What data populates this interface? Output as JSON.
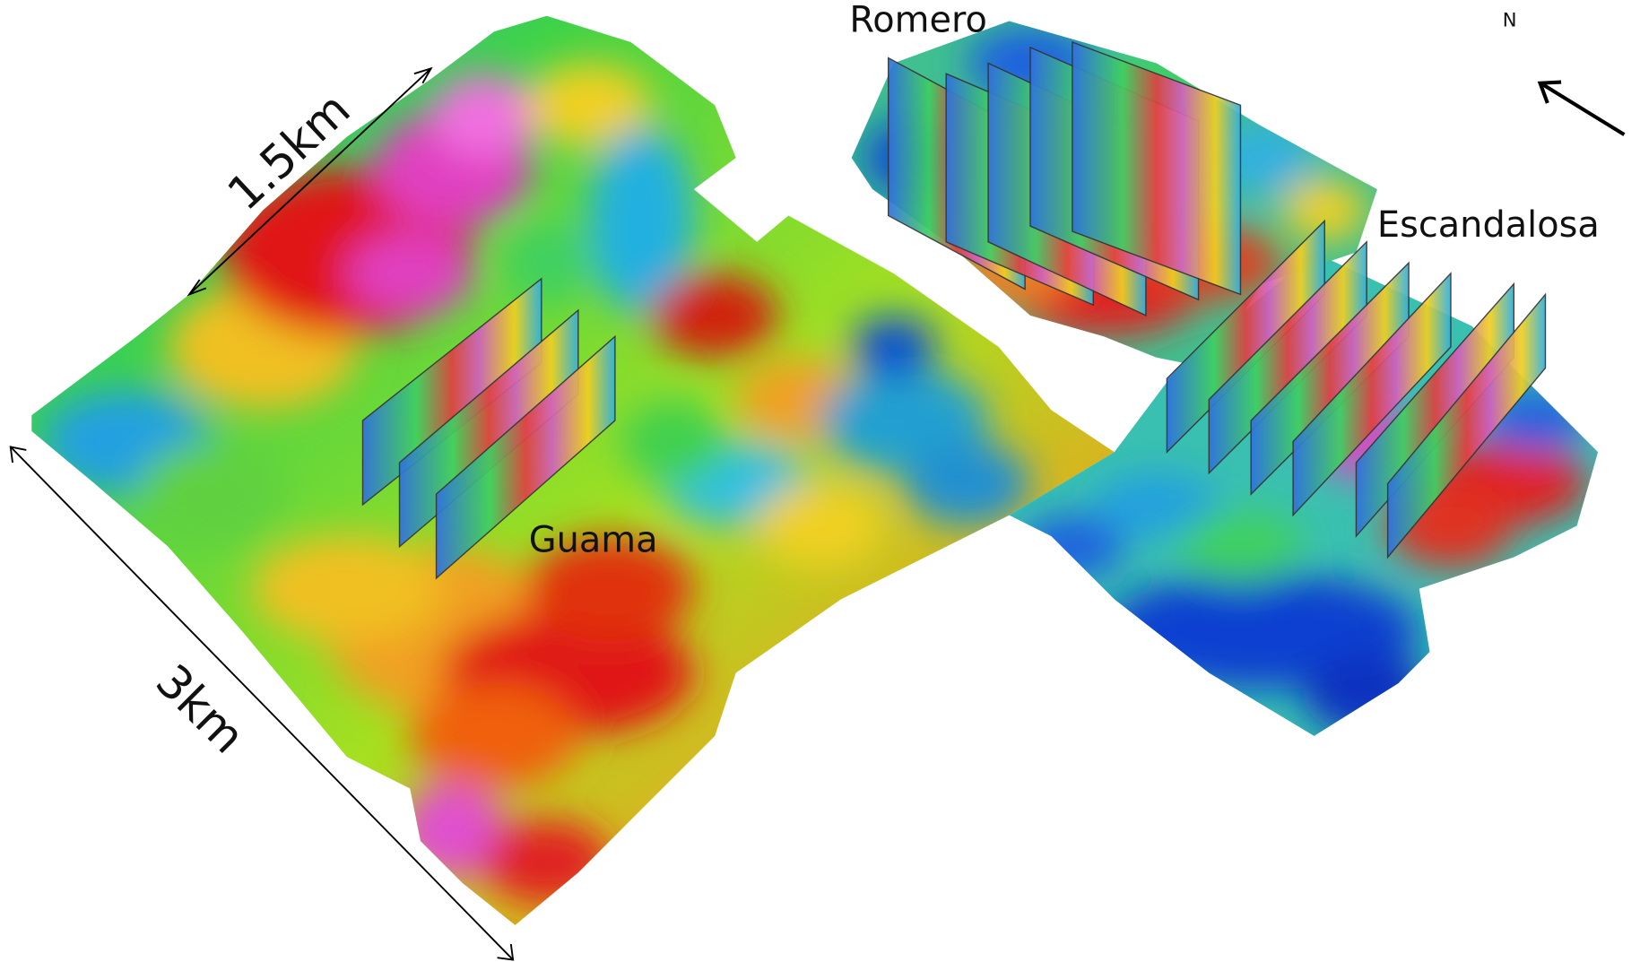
{
  "labels": {
    "romero": "Romero",
    "escandalosa": "Escandalosa",
    "guama": "Guama",
    "north": "N"
  },
  "scale": {
    "width": "1.5km",
    "length": "3km"
  }
}
